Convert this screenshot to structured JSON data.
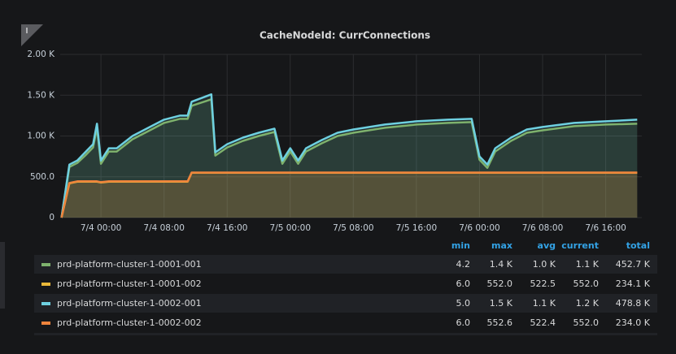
{
  "chart_data": {
    "type": "line",
    "title": "CacheNodeId: CurrConnections",
    "x": [
      "7/3 19:00",
      "7/3 20:00",
      "7/3 21:00",
      "7/3 22:00",
      "7/3 23:00",
      "7/3 23:30",
      "7/4 00:00",
      "7/4 01:00",
      "7/4 02:00",
      "7/4 04:00",
      "7/4 06:00",
      "7/4 08:00",
      "7/4 10:00",
      "7/4 11:00",
      "7/4 11:30",
      "7/4 14:00",
      "7/4 14:30",
      "7/4 16:00",
      "7/4 18:00",
      "7/4 20:00",
      "7/4 22:00",
      "7/4 23:00",
      "7/5 00:00",
      "7/5 01:00",
      "7/5 02:00",
      "7/5 04:00",
      "7/5 06:00",
      "7/5 08:00",
      "7/5 12:00",
      "7/5 16:00",
      "7/5 20:00",
      "7/5 23:00",
      "7/6 00:00",
      "7/6 01:00",
      "7/6 02:00",
      "7/6 04:00",
      "7/6 06:00",
      "7/6 08:00",
      "7/6 12:00",
      "7/6 16:00",
      "7/6 20:00"
    ],
    "xlim": [
      "7/3 18:50",
      "7/6 20:35"
    ],
    "xticks": [
      "7/4 00:00",
      "7/4 08:00",
      "7/4 16:00",
      "7/5 00:00",
      "7/5 08:00",
      "7/5 16:00",
      "7/6 00:00",
      "7/6 08:00",
      "7/6 16:00"
    ],
    "ylim": [
      0,
      2000
    ],
    "yticks": [
      0,
      {
        "value": 500,
        "label": "500.0"
      },
      {
        "value": 1000,
        "label": "1.00 K"
      },
      {
        "value": 1500,
        "label": "1.50 K"
      },
      {
        "value": 2000,
        "label": "2.00 K"
      }
    ],
    "grid": true,
    "legend_columns": [
      "min",
      "max",
      "avg",
      "current",
      "total"
    ],
    "series": [
      {
        "name": "prd-platform-cluster-1-0001-001",
        "color": "#7eb26d",
        "values": [
          0,
          620,
          670,
          760,
          860,
          1100,
          660,
          810,
          810,
          960,
          1060,
          1160,
          1210,
          1210,
          1370,
          1450,
          760,
          860,
          940,
          1000,
          1050,
          660,
          810,
          660,
          810,
          910,
          1000,
          1040,
          1100,
          1140,
          1160,
          1170,
          710,
          610,
          810,
          940,
          1040,
          1070,
          1120,
          1140,
          1150
        ],
        "legend_values": [
          "4.2",
          "1.4 K",
          "1.0 K",
          "1.1 K",
          "452.7 K"
        ]
      },
      {
        "name": "prd-platform-cluster-1-0001-002",
        "color": "#eab839",
        "values": [
          0,
          420,
          440,
          440,
          440,
          440,
          430,
          440,
          440,
          440,
          440,
          440,
          440,
          440,
          550,
          550,
          550,
          550,
          550,
          550,
          550,
          550,
          550,
          550,
          550,
          550,
          550,
          550,
          550,
          550,
          550,
          550,
          550,
          550,
          550,
          550,
          550,
          550,
          550,
          550,
          550
        ],
        "legend_values": [
          "6.0",
          "552.0",
          "522.5",
          "552.0",
          "234.1 K"
        ]
      },
      {
        "name": "prd-platform-cluster-1-0002-001",
        "color": "#6ed0e0",
        "values": [
          0,
          650,
          700,
          800,
          900,
          1150,
          700,
          850,
          850,
          1000,
          1100,
          1200,
          1250,
          1250,
          1420,
          1510,
          800,
          900,
          980,
          1040,
          1090,
          700,
          850,
          700,
          850,
          950,
          1040,
          1080,
          1140,
          1180,
          1200,
          1210,
          750,
          650,
          850,
          980,
          1080,
          1110,
          1160,
          1180,
          1200
        ],
        "legend_values": [
          "5.0",
          "1.5 K",
          "1.1 K",
          "1.2 K",
          "478.8 K"
        ]
      },
      {
        "name": "prd-platform-cluster-1-0002-002",
        "color": "#ef843c",
        "values": [
          0,
          425,
          445,
          445,
          445,
          445,
          435,
          445,
          445,
          445,
          445,
          445,
          445,
          445,
          552,
          552,
          552,
          552,
          552,
          552,
          552,
          552,
          552,
          552,
          552,
          552,
          552,
          552,
          552,
          552,
          552,
          552,
          552,
          552,
          552,
          552,
          552,
          552,
          552,
          552,
          552
        ],
        "legend_values": [
          "6.0",
          "552.6",
          "522.4",
          "552.0",
          "234.0 K"
        ]
      }
    ]
  }
}
